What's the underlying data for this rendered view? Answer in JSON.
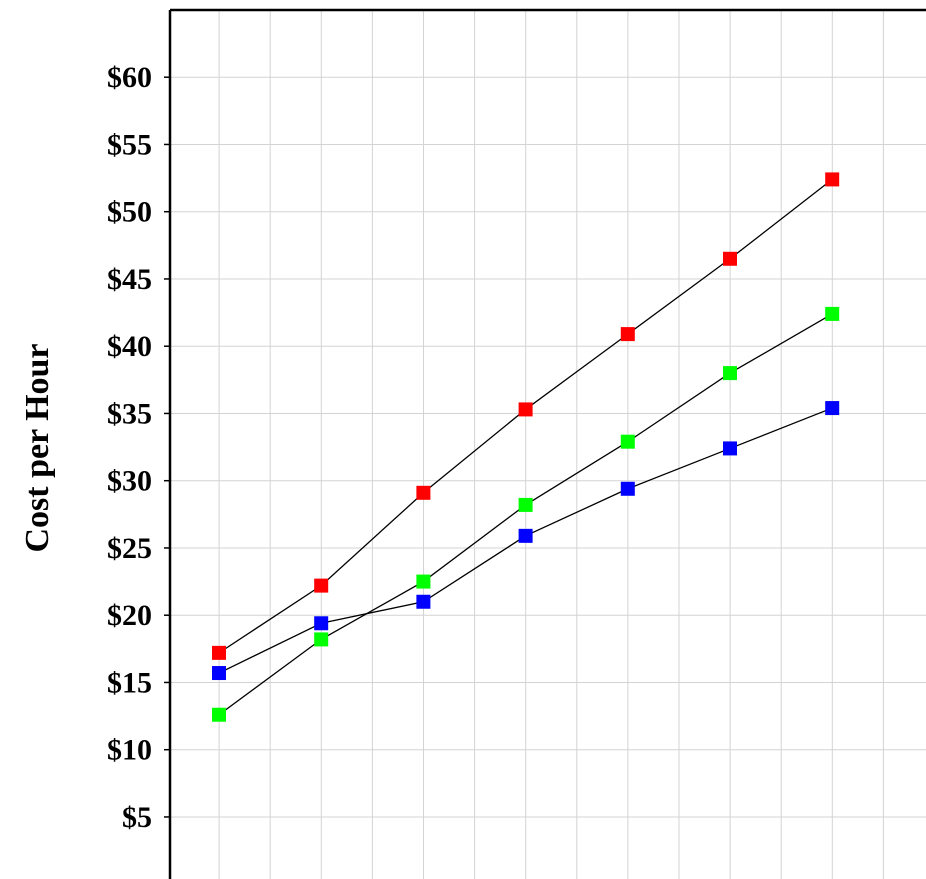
{
  "chart_data": {
    "type": "line",
    "title": "",
    "xlabel": "",
    "ylabel": "Cost per Hour",
    "y_tick_labels": [
      "$5",
      "$10",
      "$15",
      "$20",
      "$25",
      "$30",
      "$35",
      "$40",
      "$45",
      "$50",
      "$55",
      "$60"
    ],
    "y_tick_values": [
      5,
      10,
      15,
      20,
      25,
      30,
      35,
      40,
      45,
      50,
      55,
      60
    ],
    "ylim": [
      0,
      65
    ],
    "grid": true,
    "marker": "square",
    "line_color": "#000000",
    "series": [
      {
        "color": "#ff0000",
        "values": [
          17.2,
          22.2,
          29.1,
          35.3,
          40.9,
          46.5,
          52.4
        ]
      },
      {
        "color": "#00ff00",
        "values": [
          12.6,
          18.2,
          22.5,
          28.2,
          32.9,
          38.0,
          42.4
        ]
      },
      {
        "color": "#0000ff",
        "values": [
          15.7,
          19.4,
          21.0,
          25.9,
          29.4,
          32.4,
          35.4
        ]
      }
    ]
  }
}
